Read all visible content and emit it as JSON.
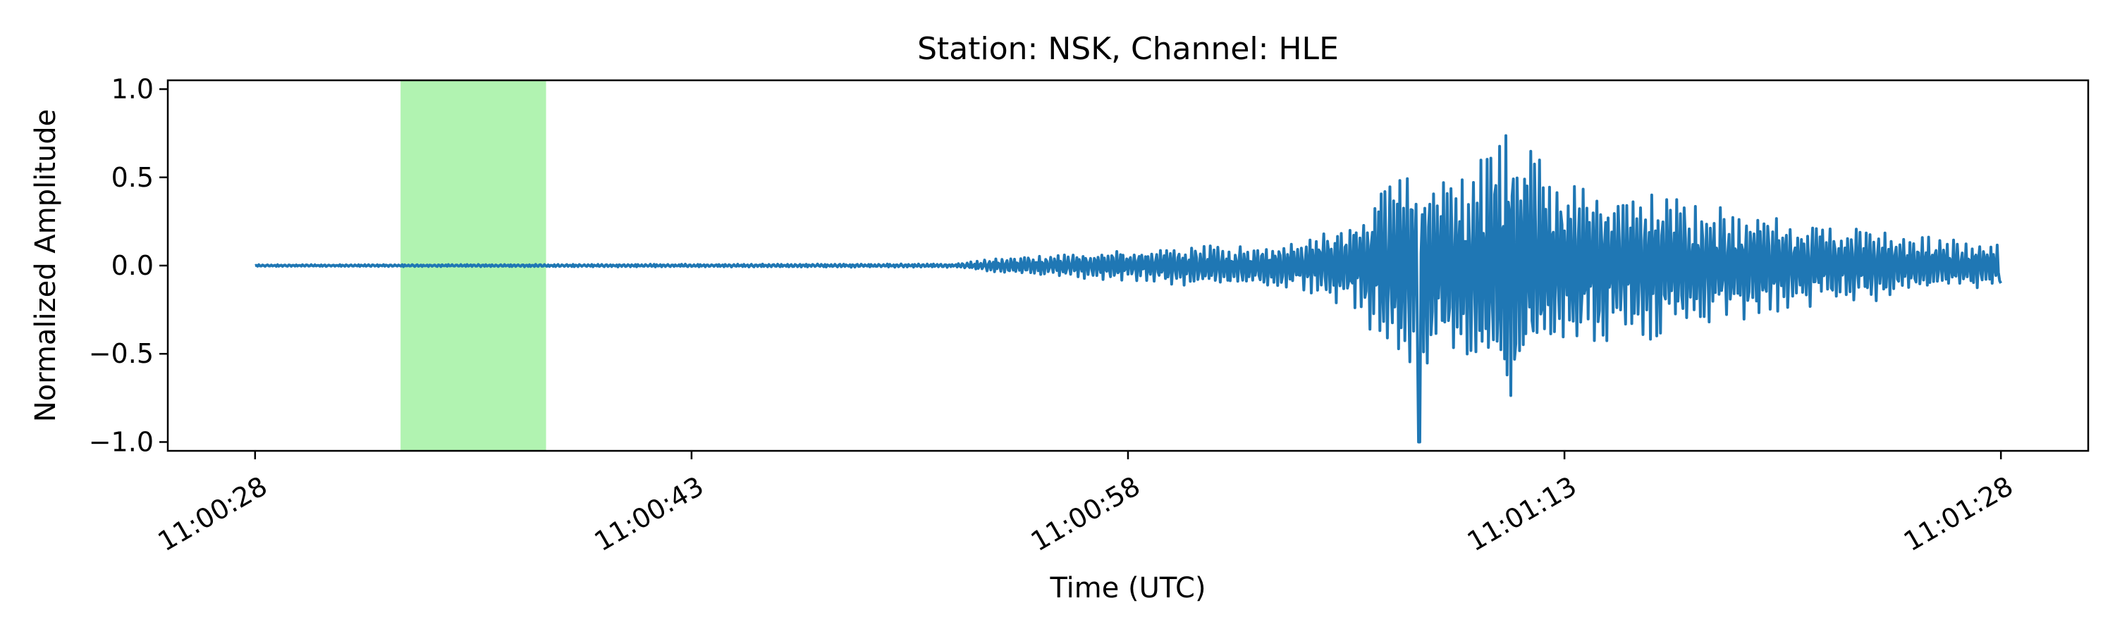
{
  "chart_data": {
    "type": "line",
    "title": "Station: NSK, Channel: HLE",
    "xlabel": "Time (UTC)",
    "ylabel": "Normalized Amplitude",
    "x_ticks": [
      "11:00:28",
      "11:00:43",
      "11:00:58",
      "11:01:13",
      "11:01:28"
    ],
    "y_ticks": [
      "1.0",
      "0.5",
      "0.0",
      "−0.5",
      "−1.0"
    ],
    "xlim": [
      "10:00:25",
      "11:01:31"
    ],
    "ylim": [
      -1.05,
      1.05
    ],
    "grid": false,
    "legend": "none",
    "colors": {
      "trace": "#1f77b4",
      "highlight": "#90ee90"
    },
    "highlight_window": {
      "start": "11:00:33",
      "end": "11:00:38"
    },
    "series": [
      {
        "x": [
          "11:00:28",
          "11:00:52",
          "11:00:54",
          "11:00:56",
          "11:00:58",
          "11:01:00",
          "11:01:02",
          "11:01:04",
          "11:01:06",
          "11:01:07",
          "11:01:08",
          "11:01:09",
          "11:01:10",
          "11:01:11",
          "11:01:12",
          "11:01:13",
          "11:01:14",
          "11:01:16",
          "11:01:18",
          "11:01:20",
          "11:01:22",
          "11:01:24",
          "11:01:26",
          "11:01:28"
        ],
        "envelope": [
          0.005,
          0.01,
          0.05,
          0.07,
          0.09,
          0.12,
          0.12,
          0.15,
          0.3,
          0.55,
          0.65,
          0.55,
          0.6,
          0.95,
          0.65,
          0.55,
          0.45,
          0.45,
          0.35,
          0.3,
          0.25,
          0.2,
          0.15,
          0.12
        ],
        "trace_end": -0.1,
        "min_value": -1.0,
        "min_at": "11:01:08"
      }
    ]
  }
}
